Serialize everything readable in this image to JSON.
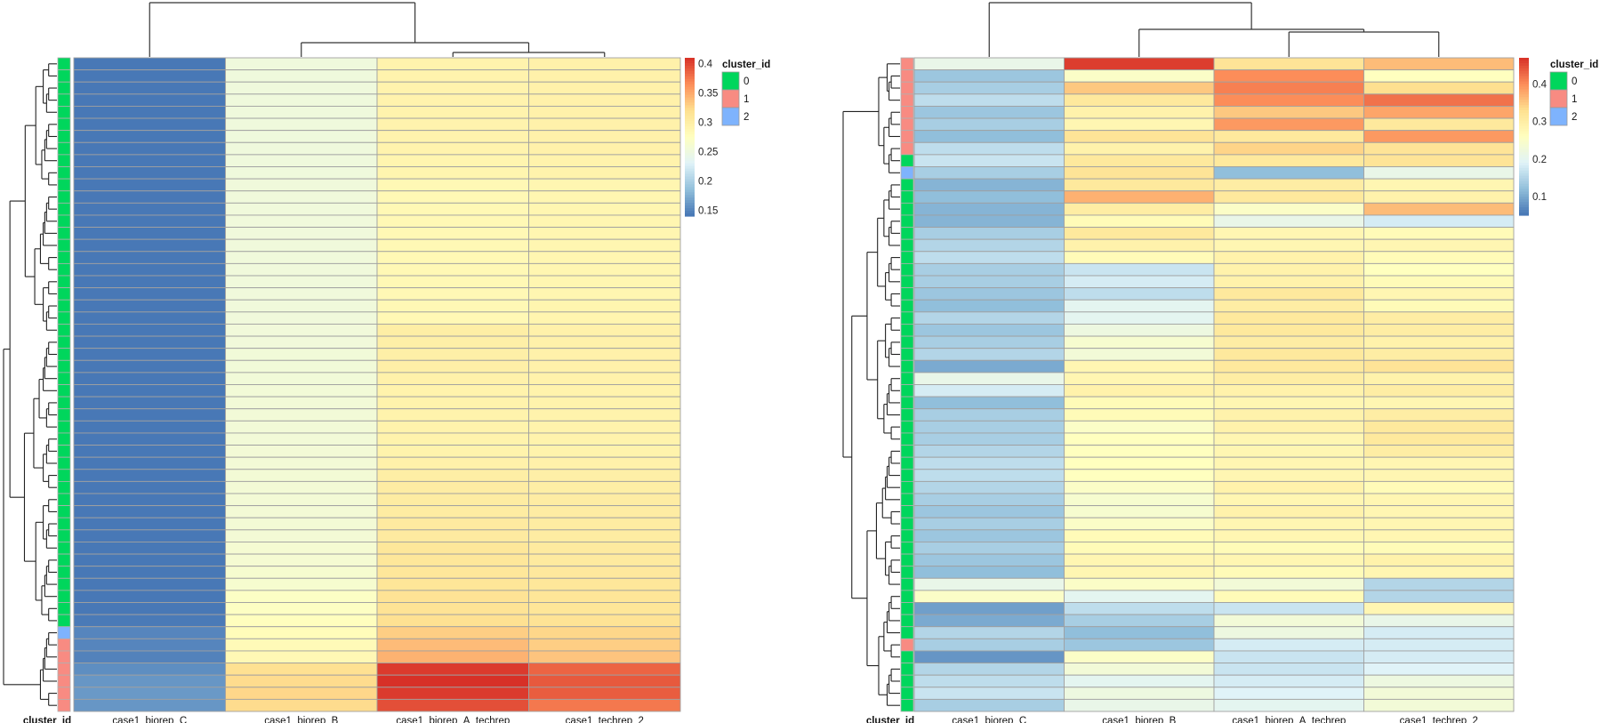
{
  "chart_data": [
    {
      "type": "heatmap",
      "panel": "left",
      "columns": [
        "case1_biorep_C",
        "case1_biorep_B",
        "case1_biorep_A_techrep",
        "case1_techrep_2"
      ],
      "row_annotation_title": "cluster_id",
      "row_clusters": [
        0,
        0,
        0,
        0,
        0,
        0,
        0,
        0,
        0,
        0,
        0,
        0,
        0,
        0,
        0,
        0,
        0,
        0,
        0,
        0,
        0,
        0,
        0,
        0,
        0,
        0,
        0,
        0,
        0,
        0,
        0,
        0,
        0,
        0,
        0,
        0,
        0,
        0,
        0,
        0,
        0,
        0,
        0,
        0,
        0,
        0,
        0,
        2,
        1,
        1,
        1,
        1,
        1,
        1
      ],
      "colorbar": {
        "min": 0.14,
        "max": 0.41,
        "ticks": [
          0.15,
          0.2,
          0.25,
          0.3,
          0.35,
          0.4
        ],
        "tick_labels": [
          "0.15",
          "0.2",
          "0.25",
          "0.3",
          "0.35",
          "0.4"
        ]
      },
      "values": [
        [
          0.142,
          0.252,
          0.292,
          0.295
        ],
        [
          0.142,
          0.252,
          0.292,
          0.295
        ],
        [
          0.142,
          0.252,
          0.292,
          0.295
        ],
        [
          0.142,
          0.252,
          0.292,
          0.295
        ],
        [
          0.142,
          0.252,
          0.292,
          0.295
        ],
        [
          0.142,
          0.252,
          0.292,
          0.295
        ],
        [
          0.142,
          0.252,
          0.292,
          0.295
        ],
        [
          0.142,
          0.252,
          0.292,
          0.295
        ],
        [
          0.142,
          0.252,
          0.29,
          0.293
        ],
        [
          0.142,
          0.252,
          0.29,
          0.293
        ],
        [
          0.142,
          0.253,
          0.285,
          0.288
        ],
        [
          0.142,
          0.253,
          0.285,
          0.288
        ],
        [
          0.142,
          0.253,
          0.285,
          0.288
        ],
        [
          0.142,
          0.253,
          0.285,
          0.288
        ],
        [
          0.142,
          0.253,
          0.285,
          0.288
        ],
        [
          0.142,
          0.253,
          0.285,
          0.288
        ],
        [
          0.142,
          0.253,
          0.285,
          0.288
        ],
        [
          0.142,
          0.253,
          0.285,
          0.288
        ],
        [
          0.142,
          0.253,
          0.285,
          0.288
        ],
        [
          0.142,
          0.253,
          0.285,
          0.288
        ],
        [
          0.142,
          0.253,
          0.285,
          0.29
        ],
        [
          0.142,
          0.253,
          0.285,
          0.29
        ],
        [
          0.142,
          0.254,
          0.3,
          0.295
        ],
        [
          0.142,
          0.254,
          0.298,
          0.295
        ],
        [
          0.142,
          0.255,
          0.298,
          0.295
        ],
        [
          0.142,
          0.255,
          0.298,
          0.295
        ],
        [
          0.142,
          0.255,
          0.295,
          0.294
        ],
        [
          0.142,
          0.256,
          0.293,
          0.293
        ],
        [
          0.142,
          0.256,
          0.293,
          0.293
        ],
        [
          0.142,
          0.256,
          0.293,
          0.293
        ],
        [
          0.142,
          0.256,
          0.293,
          0.293
        ],
        [
          0.142,
          0.256,
          0.293,
          0.293
        ],
        [
          0.142,
          0.257,
          0.293,
          0.293
        ],
        [
          0.142,
          0.257,
          0.295,
          0.295
        ],
        [
          0.142,
          0.258,
          0.3,
          0.298
        ],
        [
          0.142,
          0.258,
          0.302,
          0.3
        ],
        [
          0.142,
          0.258,
          0.303,
          0.302
        ],
        [
          0.142,
          0.258,
          0.303,
          0.302
        ],
        [
          0.142,
          0.258,
          0.305,
          0.303
        ],
        [
          0.142,
          0.258,
          0.305,
          0.303
        ],
        [
          0.142,
          0.26,
          0.31,
          0.306
        ],
        [
          0.142,
          0.26,
          0.31,
          0.306
        ],
        [
          0.142,
          0.262,
          0.31,
          0.308
        ],
        [
          0.142,
          0.262,
          0.312,
          0.31
        ],
        [
          0.142,
          0.27,
          0.315,
          0.312
        ],
        [
          0.142,
          0.272,
          0.315,
          0.312
        ],
        [
          0.143,
          0.276,
          0.318,
          0.315
        ],
        [
          0.15,
          0.28,
          0.33,
          0.325
        ],
        [
          0.15,
          0.282,
          0.34,
          0.33
        ],
        [
          0.148,
          0.285,
          0.345,
          0.335
        ],
        [
          0.155,
          0.318,
          0.405,
          0.385
        ],
        [
          0.16,
          0.322,
          0.41,
          0.39
        ],
        [
          0.162,
          0.325,
          0.405,
          0.388
        ],
        [
          0.16,
          0.322,
          0.395,
          0.375
        ]
      ]
    },
    {
      "type": "heatmap",
      "panel": "right",
      "columns": [
        "case1_biorep_C",
        "case1_biorep_B",
        "case1_biorep_A_techrep",
        "case1_techrep_2"
      ],
      "row_annotation_title": "cluster_id",
      "row_clusters": [
        1,
        1,
        1,
        1,
        1,
        1,
        1,
        1,
        0,
        2,
        0,
        0,
        0,
        0,
        0,
        0,
        0,
        0,
        0,
        0,
        0,
        0,
        0,
        0,
        0,
        0,
        0,
        0,
        0,
        0,
        0,
        0,
        0,
        0,
        0,
        0,
        0,
        0,
        0,
        0,
        0,
        0,
        0,
        0,
        0,
        0,
        0,
        0,
        1,
        0,
        0,
        0,
        0,
        0
      ],
      "colorbar": {
        "min": 0.05,
        "max": 0.47,
        "ticks": [
          0.1,
          0.2,
          0.3,
          0.4
        ],
        "tick_labels": [
          "0.1",
          "0.2",
          "0.3",
          "0.4"
        ]
      },
      "values": [
        [
          0.21,
          0.46,
          0.32,
          0.36
        ],
        [
          0.13,
          0.25,
          0.4,
          0.26
        ],
        [
          0.14,
          0.35,
          0.41,
          0.33
        ],
        [
          0.16,
          0.31,
          0.4,
          0.42
        ],
        [
          0.13,
          0.29,
          0.35,
          0.38
        ],
        [
          0.14,
          0.28,
          0.39,
          0.31
        ],
        [
          0.12,
          0.32,
          0.31,
          0.39
        ],
        [
          0.16,
          0.29,
          0.34,
          0.32
        ],
        [
          0.17,
          0.31,
          0.31,
          0.32
        ],
        [
          0.14,
          0.32,
          0.12,
          0.21
        ],
        [
          0.11,
          0.31,
          0.3,
          0.28
        ],
        [
          0.12,
          0.37,
          0.31,
          0.29
        ],
        [
          0.11,
          0.3,
          0.25,
          0.36
        ],
        [
          0.11,
          0.27,
          0.21,
          0.18
        ],
        [
          0.14,
          0.31,
          0.28,
          0.27
        ],
        [
          0.15,
          0.29,
          0.28,
          0.28
        ],
        [
          0.16,
          0.27,
          0.29,
          0.27
        ],
        [
          0.14,
          0.17,
          0.29,
          0.26
        ],
        [
          0.14,
          0.18,
          0.29,
          0.27
        ],
        [
          0.13,
          0.16,
          0.31,
          0.28
        ],
        [
          0.12,
          0.2,
          0.3,
          0.27
        ],
        [
          0.15,
          0.2,
          0.31,
          0.3
        ],
        [
          0.13,
          0.22,
          0.31,
          0.3
        ],
        [
          0.14,
          0.24,
          0.3,
          0.29
        ],
        [
          0.15,
          0.23,
          0.31,
          0.3
        ],
        [
          0.1,
          0.28,
          0.31,
          0.32
        ],
        [
          0.21,
          0.28,
          0.3,
          0.29
        ],
        [
          0.18,
          0.29,
          0.29,
          0.3
        ],
        [
          0.12,
          0.27,
          0.28,
          0.28
        ],
        [
          0.14,
          0.27,
          0.29,
          0.3
        ],
        [
          0.14,
          0.25,
          0.29,
          0.31
        ],
        [
          0.14,
          0.26,
          0.28,
          0.31
        ],
        [
          0.15,
          0.26,
          0.28,
          0.3
        ],
        [
          0.16,
          0.26,
          0.28,
          0.28
        ],
        [
          0.16,
          0.26,
          0.28,
          0.28
        ],
        [
          0.15,
          0.25,
          0.29,
          0.27
        ],
        [
          0.14,
          0.24,
          0.28,
          0.28
        ],
        [
          0.13,
          0.24,
          0.29,
          0.28
        ],
        [
          0.14,
          0.25,
          0.28,
          0.28
        ],
        [
          0.13,
          0.27,
          0.28,
          0.28
        ],
        [
          0.14,
          0.27,
          0.27,
          0.27
        ],
        [
          0.13,
          0.28,
          0.28,
          0.29
        ],
        [
          0.12,
          0.28,
          0.27,
          0.28
        ],
        [
          0.21,
          0.25,
          0.23,
          0.15
        ],
        [
          0.25,
          0.2,
          0.27,
          0.15
        ],
        [
          0.09,
          0.16,
          0.17,
          0.28
        ],
        [
          0.1,
          0.14,
          0.23,
          0.21
        ],
        [
          0.15,
          0.12,
          0.22,
          0.18
        ],
        [
          0.14,
          0.13,
          0.18,
          0.18
        ],
        [
          0.08,
          0.25,
          0.17,
          0.18
        ],
        [
          0.15,
          0.23,
          0.17,
          0.19
        ],
        [
          0.16,
          0.2,
          0.18,
          0.22
        ],
        [
          0.17,
          0.22,
          0.19,
          0.23
        ],
        [
          0.14,
          0.21,
          0.2,
          0.23
        ]
      ]
    }
  ],
  "legend": {
    "title": "cluster_id",
    "items": [
      {
        "label": "0",
        "color": "#00d65c"
      },
      {
        "label": "1",
        "color": "#f88b82"
      },
      {
        "label": "2",
        "color": "#7eb3fd"
      }
    ]
  },
  "palette": [
    "#4575b4",
    "#91bfdb",
    "#e0f3f8",
    "#ffffbf",
    "#fee090",
    "#fc8d59",
    "#d73027"
  ]
}
